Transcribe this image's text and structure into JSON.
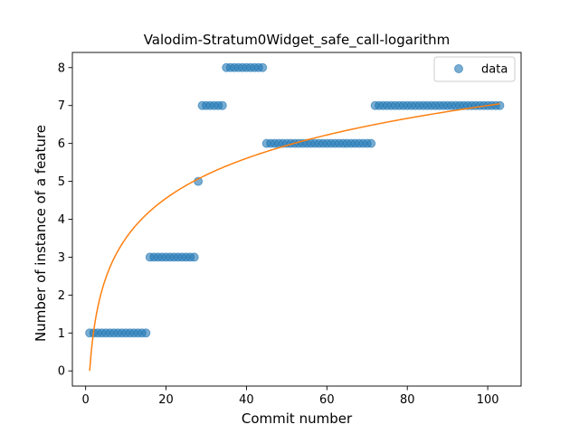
{
  "chart_data": {
    "type": "scatter",
    "title": "Valodim-Stratum0Widget_safe_call-logarithm",
    "xlabel": "Commit number",
    "ylabel": "Number of instance of a feature",
    "xlim": [
      -3.3,
      108.3
    ],
    "ylim": [
      -0.4,
      8.4
    ],
    "xticks": [
      0,
      20,
      40,
      60,
      80,
      100
    ],
    "yticks": [
      0,
      1,
      2,
      3,
      4,
      5,
      6,
      7,
      8
    ],
    "grid": false,
    "legend_position": "top-right",
    "colors": {
      "data": "#1f77b4",
      "fit": "#ff7f0e"
    },
    "legend": [
      {
        "label": "data",
        "marker": "circle",
        "color": "#1f77b4"
      }
    ],
    "series": [
      {
        "name": "data",
        "kind": "scatter",
        "segments": [
          {
            "x_from": 1,
            "x_to": 15,
            "y": 1
          },
          {
            "x_from": 16,
            "x_to": 27,
            "y": 3
          },
          {
            "x_from": 28,
            "x_to": 28,
            "y": 5
          },
          {
            "x_from": 29,
            "x_to": 34,
            "y": 7
          },
          {
            "x_from": 35,
            "x_to": 44,
            "y": 8
          },
          {
            "x_from": 45,
            "x_to": 71,
            "y": 6
          },
          {
            "x_from": 72,
            "x_to": 103,
            "y": 7
          }
        ]
      },
      {
        "kind": "line",
        "model": "y = a * ln(x)",
        "a": 1.52,
        "x_range": [
          1,
          103
        ]
      }
    ]
  }
}
